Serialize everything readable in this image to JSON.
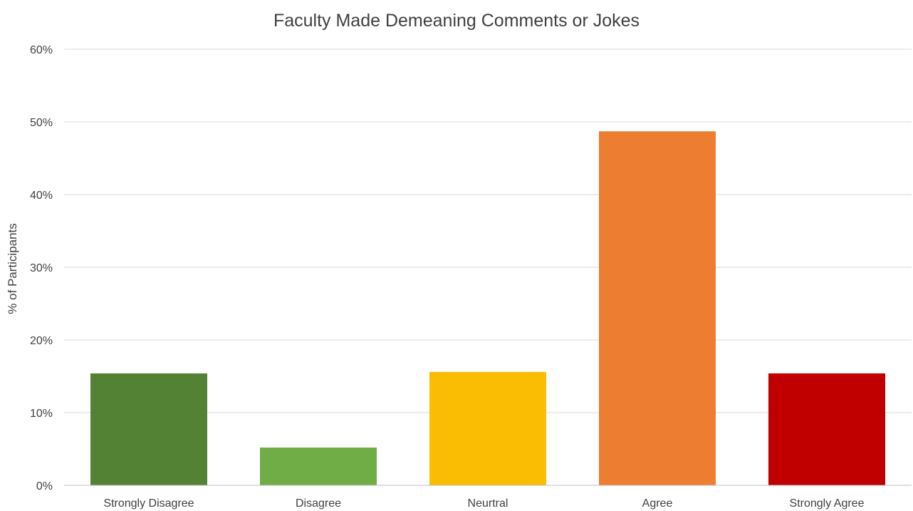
{
  "chart_data": {
    "type": "bar",
    "title": "Faculty Made Demeaning Comments or Jokes",
    "xlabel": "",
    "ylabel": "% of Participants",
    "ylim": [
      0,
      60
    ],
    "yticks": [
      "0%",
      "10%",
      "20%",
      "30%",
      "40%",
      "50%",
      "60%"
    ],
    "grid": true,
    "legend": "none",
    "categories": [
      "Strongly Disagree",
      "Disagree",
      "Neurtral",
      "Agree",
      "Strongly Agree"
    ],
    "values": [
      15.4,
      5.2,
      15.6,
      48.7,
      15.4
    ],
    "colors": [
      "#548235",
      "#70ad47",
      "#fbbc04",
      "#ed7d31",
      "#c00000"
    ]
  }
}
